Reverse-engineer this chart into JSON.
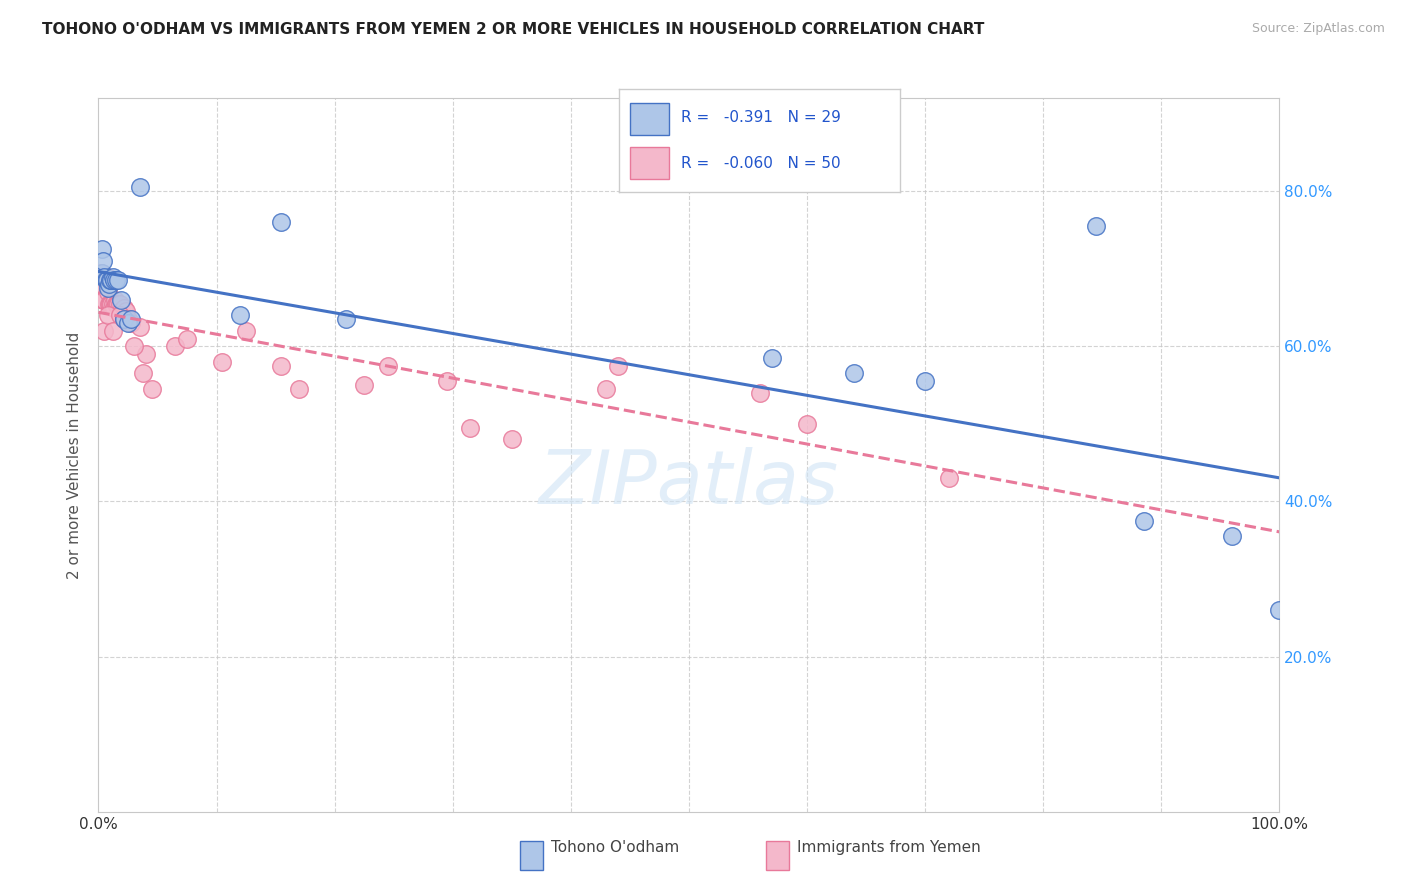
{
  "title": "TOHONO O'ODHAM VS IMMIGRANTS FROM YEMEN 2 OR MORE VEHICLES IN HOUSEHOLD CORRELATION CHART",
  "source": "Source: ZipAtlas.com",
  "ylabel": "2 or more Vehicles in Household",
  "legend_R1": "-0.391",
  "legend_N1": "29",
  "legend_R2": "-0.060",
  "legend_N2": "50",
  "legend_label1": "Tohono O'odham",
  "legend_label2": "Immigrants from Yemen",
  "color_blue": "#aec6e8",
  "color_pink": "#f4b8cb",
  "line_color_blue": "#4472c4",
  "line_color_pink": "#e8799a",
  "watermark": "ZIPatlas",
  "blue_scatter_x": [
    0.003,
    0.003,
    0.004,
    0.005,
    0.006,
    0.007,
    0.008,
    0.009,
    0.01,
    0.011,
    0.012,
    0.013,
    0.015,
    0.017,
    0.019,
    0.022,
    0.025,
    0.028,
    0.035,
    0.12,
    0.155,
    0.21,
    0.57,
    0.64,
    0.7,
    0.845,
    0.885,
    0.96,
    1.0
  ],
  "blue_scatter_y": [
    0.725,
    0.695,
    0.71,
    0.69,
    0.685,
    0.685,
    0.675,
    0.68,
    0.685,
    0.685,
    0.69,
    0.685,
    0.685,
    0.685,
    0.66,
    0.635,
    0.63,
    0.635,
    0.805,
    0.64,
    0.76,
    0.635,
    0.585,
    0.565,
    0.555,
    0.755,
    0.375,
    0.355,
    0.26
  ],
  "pink_scatter_x": [
    0.002,
    0.003,
    0.004,
    0.005,
    0.005,
    0.006,
    0.007,
    0.008,
    0.009,
    0.01,
    0.011,
    0.012,
    0.013,
    0.014,
    0.015,
    0.016,
    0.017,
    0.018,
    0.019,
    0.02,
    0.022,
    0.023,
    0.025,
    0.028,
    0.035,
    0.038,
    0.04,
    0.045,
    0.065,
    0.075,
    0.105,
    0.125,
    0.155,
    0.17,
    0.225,
    0.245,
    0.295,
    0.315,
    0.43,
    0.44,
    0.56,
    0.6,
    0.72,
    0.005,
    0.008,
    0.012,
    0.018,
    0.022,
    0.03,
    0.35
  ],
  "pink_scatter_y": [
    0.695,
    0.68,
    0.66,
    0.66,
    0.66,
    0.69,
    0.69,
    0.67,
    0.655,
    0.655,
    0.655,
    0.655,
    0.65,
    0.66,
    0.655,
    0.655,
    0.655,
    0.655,
    0.645,
    0.64,
    0.65,
    0.645,
    0.635,
    0.63,
    0.625,
    0.565,
    0.59,
    0.545,
    0.6,
    0.61,
    0.58,
    0.62,
    0.575,
    0.545,
    0.55,
    0.575,
    0.555,
    0.495,
    0.545,
    0.575,
    0.54,
    0.5,
    0.43,
    0.62,
    0.64,
    0.62,
    0.64,
    0.635,
    0.6,
    0.48
  ],
  "background_color": "#ffffff",
  "grid_color": "#c8c8c8",
  "xmin": 0.0,
  "xmax": 1.0,
  "ymin": 0.0,
  "ymax": 0.92
}
